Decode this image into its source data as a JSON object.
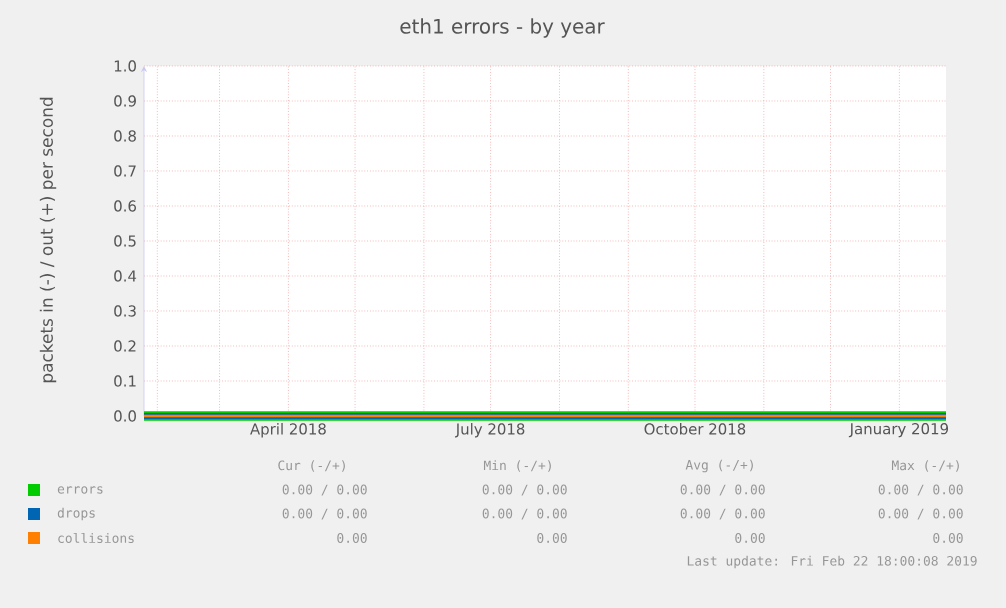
{
  "chart_data": {
    "type": "line",
    "title": "eth1 errors - by year",
    "ylabel": "packets in (-) / out (+) per second",
    "series": [
      {
        "name": "errors",
        "color": "#00cc00",
        "x": [
          "2018-01-26",
          "2019-01-22"
        ],
        "values": [
          0,
          0
        ]
      },
      {
        "name": "drops",
        "color": "#0066b3",
        "x": [
          "2018-01-26",
          "2019-01-22"
        ],
        "values": [
          0,
          0
        ]
      },
      {
        "name": "collisions",
        "color": "#ff8000",
        "x": [
          "2018-01-26",
          "2019-01-22"
        ],
        "values": [
          0,
          0
        ]
      }
    ],
    "xlim": [
      "2018-01-26",
      "2019-01-22"
    ],
    "xticks": [
      {
        "value": "2018-02-01",
        "label": null
      },
      {
        "value": "2018-03-01",
        "label": null
      },
      {
        "value": "2018-04-01",
        "label": "April 2018"
      },
      {
        "value": "2018-05-01",
        "label": null
      },
      {
        "value": "2018-06-01",
        "label": null
      },
      {
        "value": "2018-07-01",
        "label": "July 2018"
      },
      {
        "value": "2018-08-01",
        "label": null
      },
      {
        "value": "2018-09-01",
        "label": null
      },
      {
        "value": "2018-10-01",
        "label": "October 2018"
      },
      {
        "value": "2018-11-01",
        "label": null
      },
      {
        "value": "2018-12-01",
        "label": null
      },
      {
        "value": "2019-01-01",
        "label": "January 2019"
      }
    ],
    "ylim": [
      0,
      1
    ],
    "yticks": [
      {
        "value": 0,
        "label": "0.0"
      },
      0.1,
      0.2,
      0.3,
      0.4,
      0.5,
      0.6,
      0.7,
      0.8,
      0.9,
      {
        "value": 1,
        "label": "1.0"
      }
    ],
    "grid": true,
    "legend": "bottom",
    "line_style": "solid",
    "annotations": [
      "Cur (-/+)",
      "Min (-/+)",
      "Avg (-/+)",
      "Max (-/+)",
      "0.00 /  0.00",
      "0.00 /  0.00",
      "0.00 /  0.00",
      "0.00 /  0.00",
      "0.00 /  0.00",
      "0.00 /  0.00",
      "0.00 /  0.00",
      "0.00 /  0.00",
      "0.00",
      "0.00",
      "0.00",
      "0.00",
      "Last update: Fri Feb 22 18:00:08 2019"
    ]
  }
}
